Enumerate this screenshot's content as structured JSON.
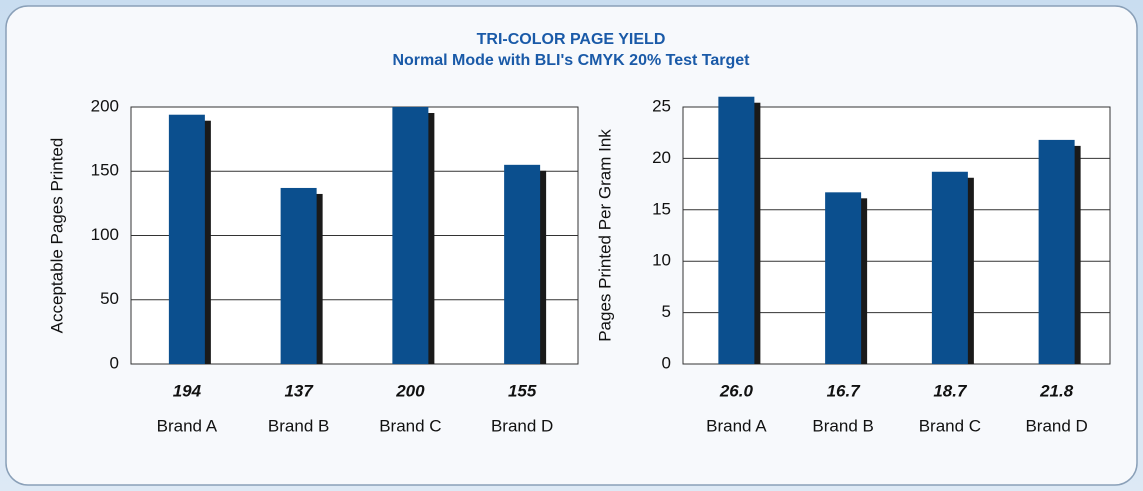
{
  "title": "TRI-COLOR PAGE YIELD",
  "subtitle": "Normal Mode with BLI's CMYK 20% Test Target",
  "chart_data": [
    {
      "type": "bar",
      "ylabel": "Acceptable Pages Printed",
      "categories": [
        "Brand A",
        "Brand B",
        "Brand C",
        "Brand D"
      ],
      "values": [
        194,
        137,
        200,
        155
      ],
      "color": "#0b4f8e",
      "ylim": [
        0,
        200
      ],
      "yticks": [
        0,
        50,
        100,
        150,
        200
      ],
      "grid": true
    },
    {
      "type": "bar",
      "ylabel": "Pages Printed Per Gram Ink",
      "categories": [
        "Brand A",
        "Brand B",
        "Brand C",
        "Brand D"
      ],
      "values": [
        26.0,
        16.7,
        18.7,
        21.8
      ],
      "value_labels": [
        "26.0",
        "16.7",
        "18.7",
        "21.8"
      ],
      "color": "#0b4f8e",
      "ylim": [
        0,
        25
      ],
      "yticks": [
        0,
        5,
        10,
        15,
        20,
        25
      ],
      "grid": true
    }
  ]
}
